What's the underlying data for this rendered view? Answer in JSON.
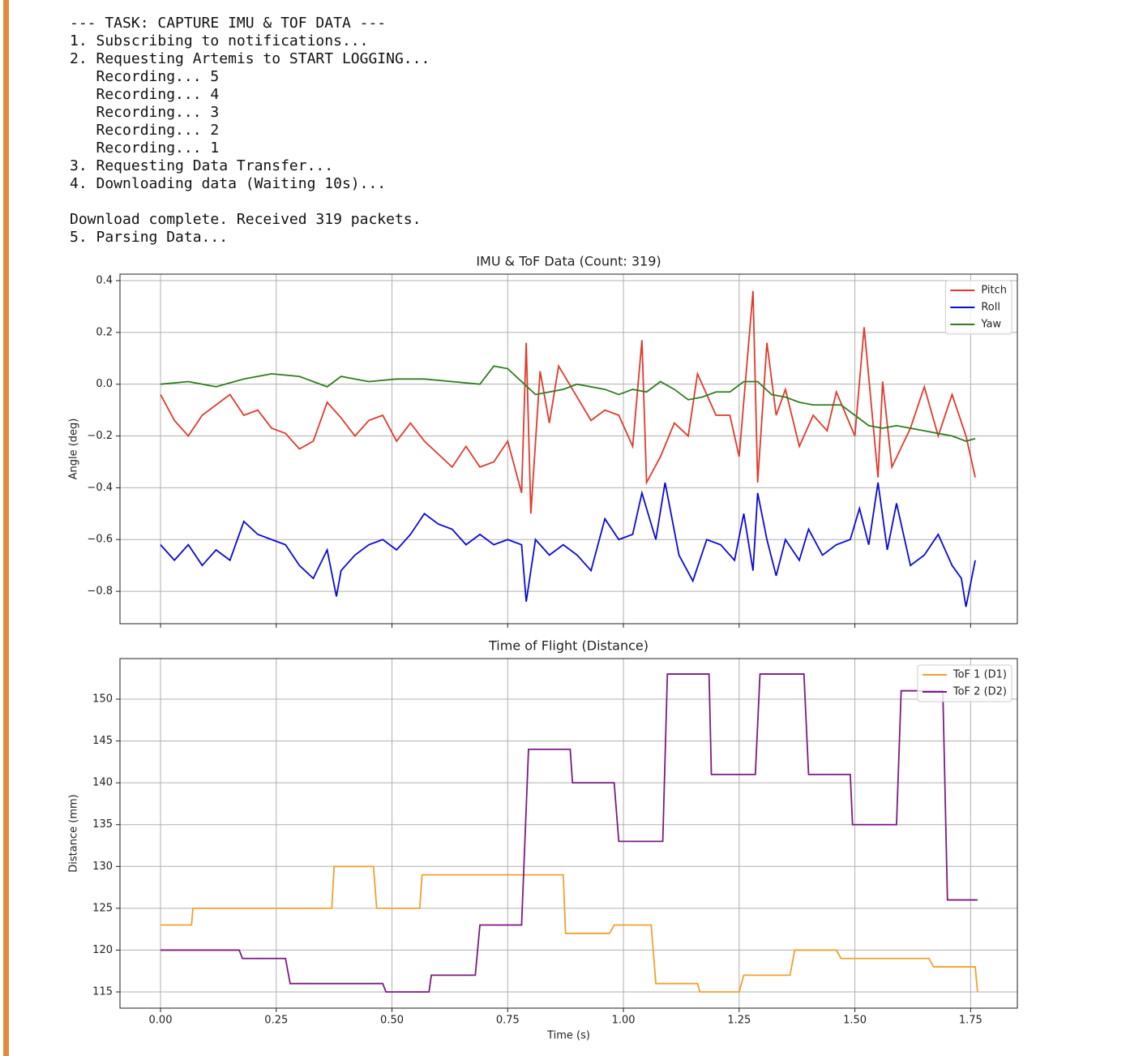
{
  "console": {
    "steps": [
      "--- TASK: CAPTURE IMU & TOF DATA ---",
      "1. Subscribing to notifications...",
      "2. Requesting Artemis to START LOGGING...",
      "   Recording... 5",
      "   Recording... 4",
      "   Recording... 3",
      "   Recording... 2",
      "   Recording... 1",
      "3. Requesting Data Transfer...",
      "4. Downloading data (Waiting 10s)..."
    ],
    "result": [
      "Download complete. Received 319 packets.",
      "5. Parsing Data..."
    ]
  },
  "chart_data": [
    {
      "type": "line",
      "title": "IMU & ToF Data (Count: 319)",
      "y_label": "Angle (deg)",
      "xlim": [
        -0.0876,
        1.851
      ],
      "ylim": [
        -0.925,
        0.425
      ],
      "xticks": [
        0,
        0.25,
        0.5,
        0.75,
        1,
        1.25,
        1.5,
        1.75
      ],
      "show_xtick_labels": false,
      "yticks": [
        {
          "value": -0.8,
          "label": "−0.8"
        },
        {
          "value": -0.6,
          "label": "−0.6"
        },
        {
          "value": -0.4,
          "label": "−0.4"
        },
        {
          "value": -0.2,
          "label": "−0.2"
        },
        {
          "value": 0,
          "label": "0.0"
        },
        0.2,
        0.4
      ],
      "grid": true,
      "legend": "upper-right",
      "series": [
        {
          "name": "Pitch",
          "color": "#e03a2c",
          "x": [
            0,
            0.03,
            0.06,
            0.09,
            0.12,
            0.15,
            0.18,
            0.21,
            0.24,
            0.27,
            0.3,
            0.33,
            0.36,
            0.39,
            0.42,
            0.45,
            0.48,
            0.51,
            0.54,
            0.57,
            0.6,
            0.63,
            0.66,
            0.69,
            0.72,
            0.75,
            0.78,
            0.79,
            0.8,
            0.82,
            0.84,
            0.86,
            0.9,
            0.93,
            0.96,
            0.99,
            1.02,
            1.04,
            1.05,
            1.08,
            1.11,
            1.14,
            1.16,
            1.2,
            1.23,
            1.25,
            1.28,
            1.29,
            1.31,
            1.33,
            1.35,
            1.38,
            1.41,
            1.44,
            1.46,
            1.5,
            1.52,
            1.55,
            1.56,
            1.58,
            1.62,
            1.65,
            1.68,
            1.71,
            1.74,
            1.76
          ],
          "values": [
            -0.04,
            -0.14,
            -0.2,
            -0.12,
            -0.08,
            -0.04,
            -0.12,
            -0.1,
            -0.17,
            -0.19,
            -0.25,
            -0.22,
            -0.07,
            -0.13,
            -0.2,
            -0.14,
            -0.12,
            -0.22,
            -0.15,
            -0.22,
            -0.27,
            -0.32,
            -0.24,
            -0.32,
            -0.3,
            -0.22,
            -0.42,
            0.16,
            -0.5,
            0.05,
            -0.15,
            0.07,
            -0.05,
            -0.14,
            -0.1,
            -0.12,
            -0.24,
            0.17,
            -0.38,
            -0.28,
            -0.15,
            -0.2,
            0.04,
            -0.12,
            -0.12,
            -0.28,
            0.36,
            -0.38,
            0.16,
            -0.12,
            -0.02,
            -0.24,
            -0.12,
            -0.18,
            -0.03,
            -0.2,
            0.22,
            -0.36,
            0.01,
            -0.32,
            -0.17,
            -0.01,
            -0.2,
            -0.04,
            -0.2,
            -0.36
          ]
        },
        {
          "name": "Roll",
          "color": "#0a0ad8",
          "x": [
            0,
            0.03,
            0.06,
            0.09,
            0.12,
            0.15,
            0.18,
            0.21,
            0.24,
            0.27,
            0.3,
            0.33,
            0.36,
            0.38,
            0.39,
            0.42,
            0.45,
            0.48,
            0.51,
            0.54,
            0.57,
            0.6,
            0.63,
            0.66,
            0.69,
            0.72,
            0.75,
            0.78,
            0.79,
            0.81,
            0.84,
            0.87,
            0.9,
            0.93,
            0.96,
            0.99,
            1.02,
            1.04,
            1.07,
            1.09,
            1.12,
            1.15,
            1.18,
            1.21,
            1.24,
            1.26,
            1.28,
            1.29,
            1.31,
            1.33,
            1.35,
            1.38,
            1.4,
            1.43,
            1.46,
            1.49,
            1.51,
            1.53,
            1.55,
            1.57,
            1.59,
            1.62,
            1.65,
            1.68,
            1.71,
            1.73,
            1.74,
            1.76
          ],
          "values": [
            -0.62,
            -0.68,
            -0.62,
            -0.7,
            -0.64,
            -0.68,
            -0.53,
            -0.58,
            -0.6,
            -0.62,
            -0.7,
            -0.75,
            -0.64,
            -0.82,
            -0.72,
            -0.66,
            -0.62,
            -0.6,
            -0.64,
            -0.58,
            -0.5,
            -0.54,
            -0.56,
            -0.62,
            -0.58,
            -0.62,
            -0.6,
            -0.62,
            -0.84,
            -0.6,
            -0.66,
            -0.62,
            -0.66,
            -0.72,
            -0.52,
            -0.6,
            -0.58,
            -0.42,
            -0.6,
            -0.38,
            -0.66,
            -0.76,
            -0.6,
            -0.62,
            -0.68,
            -0.5,
            -0.72,
            -0.42,
            -0.6,
            -0.74,
            -0.6,
            -0.68,
            -0.56,
            -0.66,
            -0.62,
            -0.6,
            -0.48,
            -0.62,
            -0.38,
            -0.64,
            -0.46,
            -0.7,
            -0.66,
            -0.58,
            -0.7,
            -0.75,
            -0.86,
            -0.68
          ]
        },
        {
          "name": "Yaw",
          "color": "#2e7d1e",
          "x": [
            0,
            0.06,
            0.12,
            0.18,
            0.24,
            0.3,
            0.33,
            0.36,
            0.39,
            0.45,
            0.51,
            0.57,
            0.63,
            0.69,
            0.72,
            0.75,
            0.78,
            0.81,
            0.87,
            0.9,
            0.96,
            0.99,
            1.02,
            1.05,
            1.08,
            1.11,
            1.14,
            1.17,
            1.2,
            1.23,
            1.26,
            1.29,
            1.32,
            1.35,
            1.38,
            1.41,
            1.44,
            1.47,
            1.5,
            1.53,
            1.56,
            1.59,
            1.62,
            1.65,
            1.68,
            1.71,
            1.74,
            1.76
          ],
          "values": [
            0,
            0.01,
            -0.01,
            0.02,
            0.04,
            0.03,
            0.01,
            -0.01,
            0.03,
            0.01,
            0.02,
            0.02,
            0.01,
            0,
            0.07,
            0.06,
            0.01,
            -0.04,
            -0.02,
            0,
            -0.02,
            -0.04,
            -0.02,
            -0.03,
            0.01,
            -0.02,
            -0.06,
            -0.05,
            -0.03,
            -0.03,
            0.01,
            0.01,
            -0.04,
            -0.05,
            -0.07,
            -0.08,
            -0.08,
            -0.08,
            -0.12,
            -0.16,
            -0.17,
            -0.16,
            -0.17,
            -0.18,
            -0.19,
            -0.2,
            -0.22,
            -0.21
          ]
        }
      ]
    },
    {
      "type": "line",
      "title": "Time of Flight (Distance)",
      "y_label": "Distance (mm)",
      "x_label": "Time (s)",
      "xlim": [
        -0.0876,
        1.851
      ],
      "ylim": [
        113.06,
        154.85
      ],
      "xticks": [
        {
          "value": 0,
          "label": "0.00"
        },
        {
          "value": 0.25,
          "label": "0.25"
        },
        {
          "value": 0.5,
          "label": "0.50"
        },
        {
          "value": 0.75,
          "label": "0.75"
        },
        {
          "value": 1,
          "label": "1.00"
        },
        {
          "value": 1.25,
          "label": "1.25"
        },
        {
          "value": 1.5,
          "label": "1.50"
        },
        {
          "value": 1.75,
          "label": "1.75"
        }
      ],
      "show_xtick_labels": true,
      "yticks": [
        115,
        120,
        125,
        130,
        135,
        140,
        145,
        150
      ],
      "grid": true,
      "legend": "upper-right",
      "series": [
        {
          "name": "ToF 1 (D1)",
          "color": "#f0a030",
          "x": [
            0,
            0.067,
            0.07,
            0.37,
            0.375,
            0.46,
            0.467,
            0.56,
            0.565,
            0.87,
            0.875,
            0.97,
            0.98,
            1.06,
            1.07,
            1.16,
            1.165,
            1.25,
            1.26,
            1.36,
            1.37,
            1.46,
            1.47,
            1.66,
            1.67,
            1.76,
            1.765
          ],
          "values": [
            123,
            123,
            125,
            125,
            130,
            130,
            125,
            125,
            129,
            129,
            122,
            122,
            123,
            123,
            116,
            116,
            115,
            115,
            117,
            117,
            120,
            120,
            119,
            119,
            118,
            118,
            115
          ]
        },
        {
          "name": "ToF 2 (D2)",
          "color": "#7b1a82",
          "x": [
            0,
            0.17,
            0.177,
            0.27,
            0.28,
            0.48,
            0.487,
            0.58,
            0.585,
            0.68,
            0.69,
            0.78,
            0.795,
            0.885,
            0.89,
            0.98,
            0.99,
            1.085,
            1.095,
            1.185,
            1.19,
            1.285,
            1.295,
            1.39,
            1.4,
            1.49,
            1.495,
            1.59,
            1.6,
            1.69,
            1.7,
            1.765
          ],
          "values": [
            120,
            120,
            119,
            119,
            116,
            116,
            115,
            115,
            117,
            117,
            123,
            123,
            144,
            144,
            140,
            140,
            133,
            133,
            153,
            153,
            141,
            141,
            153,
            153,
            141,
            141,
            135,
            135,
            151,
            151,
            126,
            126
          ]
        }
      ]
    }
  ]
}
